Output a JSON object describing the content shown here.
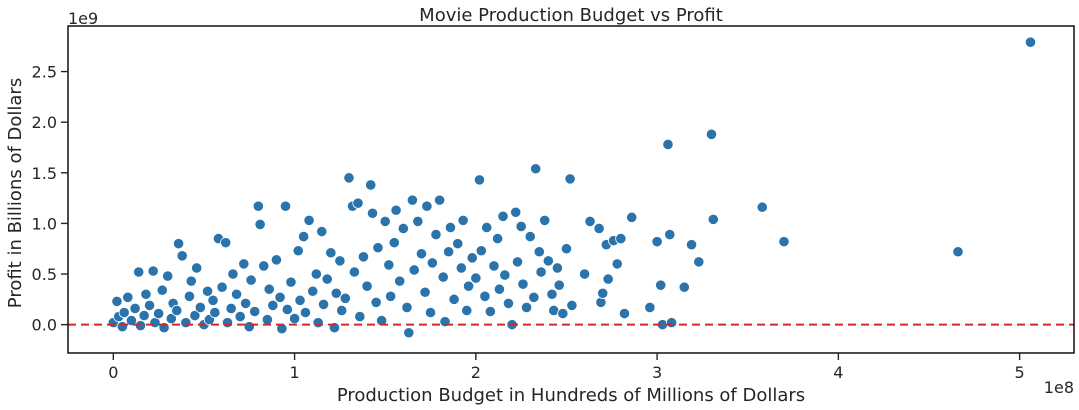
{
  "chart_data": {
    "type": "scatter",
    "title": "Movie Production Budget vs Profit",
    "xlabel": "Production Budget in Hundreds of Millions of Dollars",
    "ylabel": "Profit in Billions of Dollars",
    "x_offset_label": "1e8",
    "y_offset_label": "1e9",
    "xlim": [
      -0.25,
      5.3
    ],
    "ylim": [
      -0.28,
      2.95
    ],
    "x_ticks": [
      0,
      1,
      2,
      3,
      4,
      5
    ],
    "x_tick_labels": [
      "0",
      "1",
      "2",
      "3",
      "4",
      "5"
    ],
    "y_ticks": [
      0.0,
      0.5,
      1.0,
      1.5,
      2.0,
      2.5
    ],
    "y_tick_labels": [
      "0.0",
      "0.5",
      "1.0",
      "1.5",
      "2.0",
      "2.5"
    ],
    "grid": false,
    "point_color": "#2a73ab",
    "point_edge_color": "#ffffff",
    "reference_line": {
      "y": 0,
      "color": "#d62728",
      "style": "dashed"
    },
    "points": [
      [
        0.0,
        0.02
      ],
      [
        0.02,
        0.23
      ],
      [
        0.03,
        0.08
      ],
      [
        0.05,
        -0.02
      ],
      [
        0.06,
        0.12
      ],
      [
        0.08,
        0.27
      ],
      [
        0.1,
        0.04
      ],
      [
        0.12,
        0.16
      ],
      [
        0.14,
        0.52
      ],
      [
        0.15,
        -0.01
      ],
      [
        0.17,
        0.09
      ],
      [
        0.18,
        0.3
      ],
      [
        0.2,
        0.19
      ],
      [
        0.22,
        0.53
      ],
      [
        0.23,
        0.02
      ],
      [
        0.25,
        0.11
      ],
      [
        0.27,
        0.34
      ],
      [
        0.28,
        -0.03
      ],
      [
        0.3,
        0.48
      ],
      [
        0.32,
        0.06
      ],
      [
        0.33,
        0.21
      ],
      [
        0.35,
        0.14
      ],
      [
        0.36,
        0.8
      ],
      [
        0.38,
        0.68
      ],
      [
        0.4,
        0.02
      ],
      [
        0.42,
        0.28
      ],
      [
        0.43,
        0.43
      ],
      [
        0.45,
        0.09
      ],
      [
        0.46,
        0.56
      ],
      [
        0.48,
        0.17
      ],
      [
        0.5,
        0.0
      ],
      [
        0.52,
        0.33
      ],
      [
        0.53,
        0.05
      ],
      [
        0.55,
        0.24
      ],
      [
        0.56,
        0.12
      ],
      [
        0.58,
        0.85
      ],
      [
        0.6,
        0.37
      ],
      [
        0.62,
        0.81
      ],
      [
        0.63,
        0.02
      ],
      [
        0.65,
        0.16
      ],
      [
        0.66,
        0.5
      ],
      [
        0.68,
        0.3
      ],
      [
        0.7,
        0.08
      ],
      [
        0.72,
        0.6
      ],
      [
        0.73,
        0.21
      ],
      [
        0.75,
        -0.02
      ],
      [
        0.76,
        0.44
      ],
      [
        0.78,
        0.13
      ],
      [
        0.8,
        1.17
      ],
      [
        0.81,
        0.99
      ],
      [
        0.83,
        0.58
      ],
      [
        0.85,
        0.05
      ],
      [
        0.86,
        0.35
      ],
      [
        0.88,
        0.19
      ],
      [
        0.9,
        0.64
      ],
      [
        0.92,
        0.27
      ],
      [
        0.93,
        -0.04
      ],
      [
        0.95,
        1.17
      ],
      [
        0.96,
        0.15
      ],
      [
        0.98,
        0.42
      ],
      [
        1.0,
        0.06
      ],
      [
        1.02,
        0.73
      ],
      [
        1.03,
        0.24
      ],
      [
        1.05,
        0.87
      ],
      [
        1.06,
        0.12
      ],
      [
        1.08,
        1.03
      ],
      [
        1.1,
        0.33
      ],
      [
        1.12,
        0.5
      ],
      [
        1.13,
        0.02
      ],
      [
        1.15,
        0.92
      ],
      [
        1.16,
        0.2
      ],
      [
        1.18,
        0.45
      ],
      [
        1.2,
        0.71
      ],
      [
        1.22,
        -0.03
      ],
      [
        1.23,
        0.31
      ],
      [
        1.25,
        0.63
      ],
      [
        1.26,
        0.14
      ],
      [
        1.28,
        0.26
      ],
      [
        1.3,
        1.45
      ],
      [
        1.32,
        1.17
      ],
      [
        1.33,
        0.52
      ],
      [
        1.35,
        1.2
      ],
      [
        1.36,
        0.08
      ],
      [
        1.38,
        0.67
      ],
      [
        1.4,
        0.38
      ],
      [
        1.42,
        1.38
      ],
      [
        1.43,
        1.1
      ],
      [
        1.45,
        0.22
      ],
      [
        1.46,
        0.76
      ],
      [
        1.48,
        0.04
      ],
      [
        1.5,
        1.02
      ],
      [
        1.52,
        0.59
      ],
      [
        1.53,
        0.28
      ],
      [
        1.55,
        0.81
      ],
      [
        1.56,
        1.13
      ],
      [
        1.58,
        0.43
      ],
      [
        1.6,
        0.95
      ],
      [
        1.62,
        0.17
      ],
      [
        1.63,
        -0.08
      ],
      [
        1.65,
        1.23
      ],
      [
        1.66,
        0.54
      ],
      [
        1.68,
        1.02
      ],
      [
        1.7,
        0.7
      ],
      [
        1.72,
        0.32
      ],
      [
        1.73,
        1.17
      ],
      [
        1.75,
        0.12
      ],
      [
        1.76,
        0.61
      ],
      [
        1.78,
        0.89
      ],
      [
        1.8,
        1.23
      ],
      [
        1.82,
        0.47
      ],
      [
        1.83,
        0.03
      ],
      [
        1.85,
        0.72
      ],
      [
        1.86,
        0.96
      ],
      [
        1.88,
        0.25
      ],
      [
        1.9,
        0.8
      ],
      [
        1.92,
        0.56
      ],
      [
        1.93,
        1.03
      ],
      [
        1.95,
        0.14
      ],
      [
        1.96,
        0.38
      ],
      [
        1.98,
        0.66
      ],
      [
        2.0,
        0.46
      ],
      [
        2.02,
        1.43
      ],
      [
        2.03,
        0.73
      ],
      [
        2.05,
        0.28
      ],
      [
        2.06,
        0.96
      ],
      [
        2.08,
        0.13
      ],
      [
        2.1,
        0.58
      ],
      [
        2.12,
        0.85
      ],
      [
        2.13,
        0.35
      ],
      [
        2.15,
        1.07
      ],
      [
        2.16,
        0.49
      ],
      [
        2.18,
        0.21
      ],
      [
        2.2,
        0.0
      ],
      [
        2.22,
        1.11
      ],
      [
        2.23,
        0.62
      ],
      [
        2.25,
        0.97
      ],
      [
        2.26,
        0.4
      ],
      [
        2.28,
        0.17
      ],
      [
        2.3,
        0.87
      ],
      [
        2.32,
        0.27
      ],
      [
        2.33,
        1.54
      ],
      [
        2.35,
        0.72
      ],
      [
        2.36,
        0.52
      ],
      [
        2.38,
        1.03
      ],
      [
        2.4,
        0.63
      ],
      [
        2.42,
        0.3
      ],
      [
        2.43,
        0.14
      ],
      [
        2.45,
        0.56
      ],
      [
        2.46,
        0.39
      ],
      [
        2.48,
        0.11
      ],
      [
        2.5,
        0.75
      ],
      [
        2.52,
        1.44
      ],
      [
        2.53,
        0.19
      ],
      [
        2.6,
        0.5
      ],
      [
        2.63,
        1.02
      ],
      [
        2.68,
        0.95
      ],
      [
        2.69,
        0.22
      ],
      [
        2.7,
        0.31
      ],
      [
        2.72,
        0.79
      ],
      [
        2.73,
        0.45
      ],
      [
        2.76,
        0.83
      ],
      [
        2.78,
        0.6
      ],
      [
        2.8,
        0.85
      ],
      [
        2.82,
        0.11
      ],
      [
        2.86,
        1.06
      ],
      [
        2.96,
        0.17
      ],
      [
        3.0,
        0.82
      ],
      [
        3.02,
        0.39
      ],
      [
        3.03,
        0.0
      ],
      [
        3.06,
        1.78
      ],
      [
        3.07,
        0.89
      ],
      [
        3.08,
        0.02
      ],
      [
        3.15,
        0.37
      ],
      [
        3.19,
        0.79
      ],
      [
        3.23,
        0.62
      ],
      [
        3.3,
        1.88
      ],
      [
        3.31,
        1.04
      ],
      [
        3.58,
        1.16
      ],
      [
        3.7,
        0.82
      ],
      [
        4.66,
        0.72
      ],
      [
        5.06,
        2.79
      ]
    ]
  }
}
